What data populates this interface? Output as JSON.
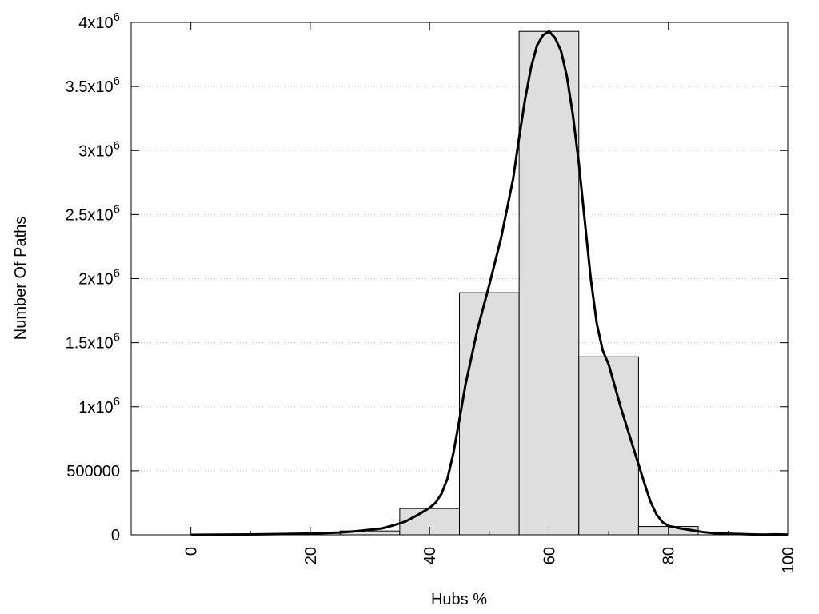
{
  "chart_data": {
    "type": "bar",
    "xlabel": "Hubs %",
    "ylabel": "Number Of Paths",
    "xlim": [
      -10,
      100
    ],
    "ylim": [
      0,
      4000000
    ],
    "grid": "horizontal dotted",
    "x_ticks": [
      {
        "value": 0,
        "label": "0"
      },
      {
        "value": 20,
        "label": "20"
      },
      {
        "value": 40,
        "label": "40"
      },
      {
        "value": 60,
        "label": "60"
      },
      {
        "value": 80,
        "label": "80"
      },
      {
        "value": 100,
        "label": "100"
      }
    ],
    "y_ticks": [
      {
        "value": 0,
        "base": "0",
        "exp": ""
      },
      {
        "value": 500000,
        "base": "500000",
        "exp": ""
      },
      {
        "value": 1000000,
        "base": "1x10",
        "exp": "6"
      },
      {
        "value": 1500000,
        "base": "1.5x10",
        "exp": "6"
      },
      {
        "value": 2000000,
        "base": "2x10",
        "exp": "6"
      },
      {
        "value": 2500000,
        "base": "2.5x10",
        "exp": "6"
      },
      {
        "value": 3000000,
        "base": "3x10",
        "exp": "6"
      },
      {
        "value": 3500000,
        "base": "3.5x10",
        "exp": "6"
      },
      {
        "value": 4000000,
        "base": "4x10",
        "exp": "6"
      }
    ],
    "bins": [
      {
        "x0": 25,
        "x1": 35,
        "value": 30000
      },
      {
        "x0": 35,
        "x1": 45,
        "value": 205000
      },
      {
        "x0": 45,
        "x1": 55,
        "value": 1890000
      },
      {
        "x0": 55,
        "x1": 65,
        "value": 3930000
      },
      {
        "x0": 65,
        "x1": 75,
        "value": 1390000
      },
      {
        "x0": 75,
        "x1": 85,
        "value": 65000
      }
    ],
    "curve": {
      "x": [
        0,
        5,
        10,
        15,
        20,
        25,
        28,
        32,
        34,
        36,
        38,
        40,
        41,
        42,
        43,
        44,
        45,
        46,
        48,
        50,
        52,
        54,
        55,
        56,
        57,
        58,
        59,
        60,
        61,
        62,
        63,
        64,
        65,
        66,
        67,
        68,
        69,
        70,
        72,
        74,
        75,
        76,
        77,
        78,
        79,
        80,
        82,
        84,
        86,
        88,
        90,
        92,
        94,
        96,
        98,
        100
      ],
      "y": [
        0,
        1000,
        3000,
        6000,
        10000,
        18000,
        30000,
        50000,
        75000,
        105000,
        155000,
        210000,
        250000,
        320000,
        440000,
        640000,
        900000,
        1170000,
        1600000,
        1950000,
        2320000,
        2780000,
        3100000,
        3400000,
        3650000,
        3820000,
        3900000,
        3930000,
        3880000,
        3780000,
        3580000,
        3280000,
        2900000,
        2450000,
        2000000,
        1650000,
        1440000,
        1330000,
        1000000,
        700000,
        550000,
        400000,
        260000,
        160000,
        100000,
        70000,
        50000,
        35000,
        20000,
        12000,
        9000,
        6000,
        3000,
        1500,
        4000,
        1000
      ]
    }
  }
}
